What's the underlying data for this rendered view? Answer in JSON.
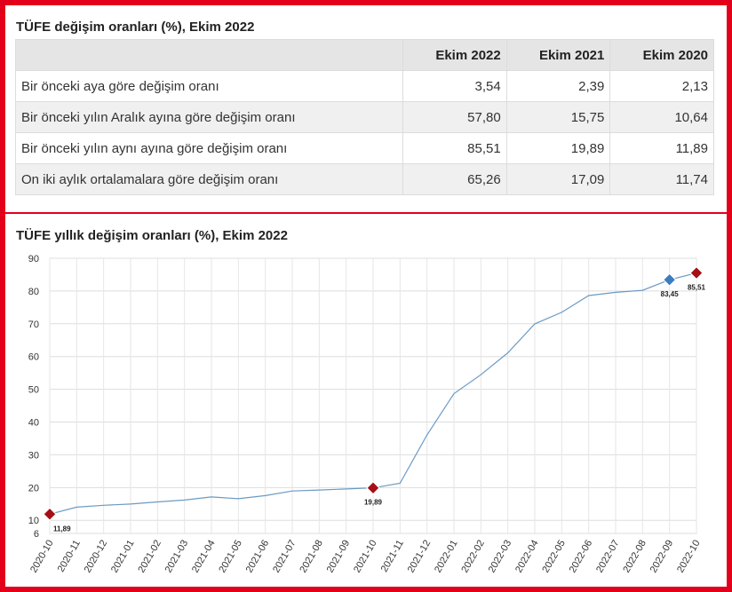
{
  "table": {
    "title": "TÜFE değişim oranları (%), Ekim 2022",
    "columns": [
      "",
      "Ekim 2022",
      "Ekim 2021",
      "Ekim 2020"
    ],
    "rows": [
      {
        "label": "Bir önceki aya göre değişim oranı",
        "values": [
          "3,54",
          "2,39",
          "2,13"
        ]
      },
      {
        "label": "Bir önceki yılın Aralık ayına göre değişim oranı",
        "values": [
          "57,80",
          "15,75",
          "10,64"
        ]
      },
      {
        "label": "Bir önceki yılın aynı ayına göre değişim oranı",
        "values": [
          "85,51",
          "19,89",
          "11,89"
        ]
      },
      {
        "label": "On iki aylık ortalamalara göre değişim oranı",
        "values": [
          "65,26",
          "17,09",
          "11,74"
        ]
      }
    ]
  },
  "chart_data": {
    "type": "line",
    "title": "TÜFE yıllık değişim oranları (%), Ekim 2022",
    "xlabel": "",
    "ylabel": "",
    "x": [
      "2020-10",
      "2020-11",
      "2020-12",
      "2021-01",
      "2021-02",
      "2021-03",
      "2021-04",
      "2021-05",
      "2021-06",
      "2021-07",
      "2021-08",
      "2021-09",
      "2021-10",
      "2021-11",
      "2021-12",
      "2022-01",
      "2022-02",
      "2022-03",
      "2022-04",
      "2022-05",
      "2022-06",
      "2022-07",
      "2022-08",
      "2022-09",
      "2022-10"
    ],
    "series": [
      {
        "values": [
          11.89,
          14.03,
          14.6,
          14.97,
          15.61,
          16.19,
          17.14,
          16.59,
          17.53,
          18.95,
          19.25,
          19.58,
          19.89,
          21.31,
          36.08,
          48.69,
          54.44,
          61.14,
          69.97,
          73.5,
          78.62,
          79.6,
          80.21,
          83.45,
          85.51
        ],
        "color": "#6b9ac4"
      }
    ],
    "ylim": [
      6,
      90
    ],
    "yticks": [
      6,
      10,
      20,
      30,
      40,
      50,
      60,
      70,
      80,
      90
    ],
    "grid": true,
    "highlights": [
      {
        "x": "2020-10",
        "value": 11.89,
        "label": "11,89",
        "color": "#a50f15"
      },
      {
        "x": "2021-10",
        "value": 19.89,
        "label": "19,89",
        "color": "#a50f15"
      },
      {
        "x": "2022-09",
        "value": 83.45,
        "label": "83,45",
        "color": "#3a7dc0"
      },
      {
        "x": "2022-10",
        "value": 85.51,
        "label": "85,51",
        "color": "#a50f15"
      }
    ]
  }
}
